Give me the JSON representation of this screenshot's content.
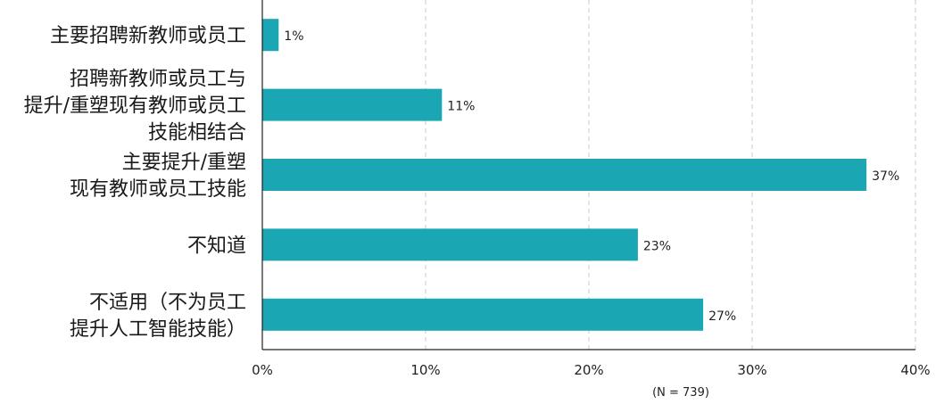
{
  "chart_data": {
    "type": "bar",
    "orientation": "horizontal",
    "categories": [
      [
        "主要招聘新教师或员工"
      ],
      [
        "招聘新教师或员工与",
        "提升/重塑现有教师或员工",
        "技能相结合"
      ],
      [
        "主要提升/重塑",
        "现有教师或员工技能"
      ],
      [
        "不知道"
      ],
      [
        "不适用（不为员工",
        "提升人工智能技能）"
      ]
    ],
    "values": [
      1,
      11,
      37,
      23,
      27
    ],
    "value_labels": [
      "1%",
      "11%",
      "37%",
      "23%",
      "27%"
    ],
    "xlim": [
      0,
      40
    ],
    "x_ticks": [
      0,
      10,
      20,
      30,
      40
    ],
    "x_tick_labels": [
      "0%",
      "10%",
      "20%",
      "30%",
      "40%"
    ],
    "grid": "vertical dashed",
    "bar_color": "#1aa6b3",
    "note": "(N = 739)"
  }
}
